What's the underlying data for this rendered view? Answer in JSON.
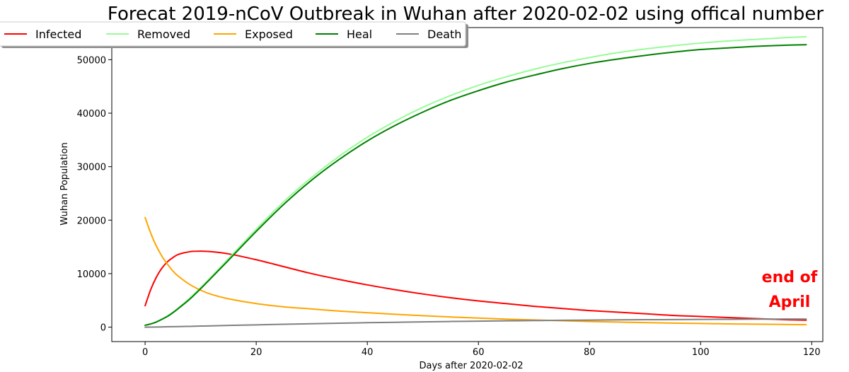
{
  "chart_data": {
    "type": "line",
    "title": "Forecat 2019-nCoV Outbreak in Wuhan after 2020-02-02 using offical number",
    "xlabel": "Days after 2020-02-02",
    "ylabel": "Wuhan Population",
    "xlim": [
      -6,
      122
    ],
    "ylim": [
      -2700,
      56000
    ],
    "x_ticks": [
      0,
      20,
      40,
      60,
      80,
      100,
      120
    ],
    "y_ticks": [
      0,
      10000,
      20000,
      30000,
      40000,
      50000
    ],
    "grid": false,
    "legend_position": "top-left",
    "x": [
      0,
      1,
      2,
      3,
      4,
      5,
      6,
      8,
      10,
      12,
      15,
      20,
      25,
      30,
      35,
      40,
      45,
      50,
      55,
      60,
      65,
      70,
      75,
      80,
      85,
      90,
      95,
      100,
      105,
      110,
      115,
      119
    ],
    "series": [
      {
        "name": "Infected",
        "color": "#ff0000",
        "values": [
          4000,
          7000,
          9300,
          11000,
          12200,
          13000,
          13600,
          14100,
          14200,
          14100,
          13700,
          12600,
          11300,
          10000,
          8900,
          7900,
          7000,
          6200,
          5500,
          4900,
          4400,
          3900,
          3500,
          3100,
          2800,
          2500,
          2200,
          2000,
          1800,
          1600,
          1400,
          1300
        ]
      },
      {
        "name": "Removed",
        "color": "#98fb98",
        "values": [
          350,
          600,
          1000,
          1500,
          2100,
          2800,
          3600,
          5400,
          7400,
          9500,
          12800,
          18300,
          23500,
          28000,
          32000,
          35500,
          38500,
          41100,
          43300,
          45200,
          46800,
          48200,
          49400,
          50400,
          51300,
          52000,
          52600,
          53100,
          53500,
          53800,
          54100,
          54300
        ]
      },
      {
        "name": "Exposed",
        "color": "#ffa500",
        "values": [
          20500,
          17600,
          15200,
          13300,
          11800,
          10500,
          9500,
          8000,
          6900,
          6100,
          5300,
          4400,
          3800,
          3400,
          3000,
          2700,
          2400,
          2150,
          1900,
          1700,
          1500,
          1350,
          1200,
          1050,
          950,
          850,
          750,
          680,
          610,
          550,
          500,
          450
        ]
      },
      {
        "name": "Heal",
        "color": "#008000",
        "values": [
          350,
          600,
          950,
          1450,
          2000,
          2700,
          3500,
          5200,
          7200,
          9300,
          12500,
          17900,
          23000,
          27500,
          31400,
          34800,
          37700,
          40200,
          42400,
          44200,
          45800,
          47100,
          48300,
          49300,
          50100,
          50800,
          51400,
          51900,
          52200,
          52500,
          52700,
          52800
        ]
      },
      {
        "name": "Death",
        "color": "#808080",
        "values": [
          0,
          15,
          30,
          50,
          70,
          90,
          110,
          150,
          200,
          250,
          320,
          430,
          540,
          640,
          740,
          830,
          910,
          990,
          1060,
          1120,
          1180,
          1230,
          1280,
          1320,
          1360,
          1390,
          1420,
          1450,
          1470,
          1490,
          1510,
          1520
        ]
      }
    ],
    "annotation": {
      "lines": [
        "end of",
        "April"
      ],
      "color": "#ff0000"
    }
  }
}
